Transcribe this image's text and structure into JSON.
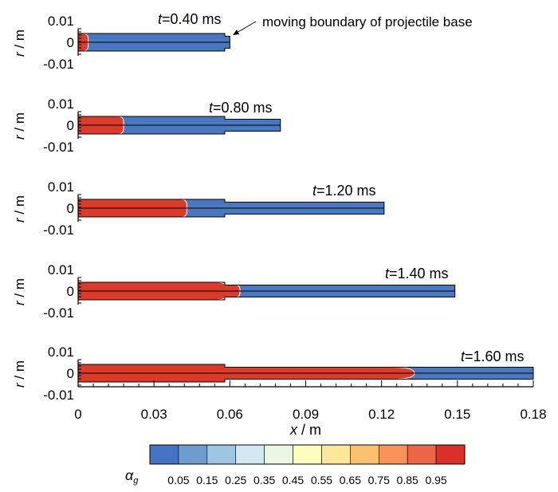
{
  "figure": {
    "panels": [
      {
        "time_label": "t",
        "time_value": "=0.40 ms",
        "front_x": 0.004,
        "tube_end_x": 0.06
      },
      {
        "time_label": "t",
        "time_value": "=0.80 ms",
        "front_x": 0.018,
        "tube_end_x": 0.08
      },
      {
        "time_label": "t",
        "time_value": "=1.20 ms",
        "front_x": 0.043,
        "tube_end_x": 0.121
      },
      {
        "time_label": "t",
        "time_value": "=1.40 ms",
        "front_x": 0.064,
        "tube_end_x": 0.149
      },
      {
        "time_label": "t",
        "time_value": "=1.60 ms",
        "front_x": 0.133,
        "tube_end_x": 0.18
      }
    ],
    "y_ticks": [
      "0.01",
      "0",
      "-0.01"
    ],
    "y_label_var": "r",
    "y_label_unit": " / m",
    "x_ticks": [
      "0",
      "0.03",
      "0.06",
      "0.09",
      "0.12",
      "0.15",
      "0.18"
    ],
    "x_tick_values": [
      0,
      0.03,
      0.06,
      0.09,
      0.12,
      0.15,
      0.18
    ],
    "x_label_var": "x",
    "x_label_unit": " / m",
    "annotation": "moving boundary of projectile base",
    "chamber_end_x": 0.058,
    "colorbar": {
      "symbol": "α",
      "symbol_sub": "g",
      "labels": [
        "0.05",
        "0.15",
        "0.25",
        "0.35",
        "0.45",
        "0.55",
        "0.65",
        "0.75",
        "0.85",
        "0.95"
      ],
      "colors": [
        "#4472c4",
        "#6d9ccd",
        "#9ec5e1",
        "#d2e9f1",
        "#ecf6e4",
        "#fefdc0",
        "#fde79a",
        "#fbc171",
        "#f7925a",
        "#ec6547",
        "#db2f2b"
      ]
    },
    "colors": {
      "gas": "#db3b2b",
      "solid": "#4a77bd"
    }
  }
}
